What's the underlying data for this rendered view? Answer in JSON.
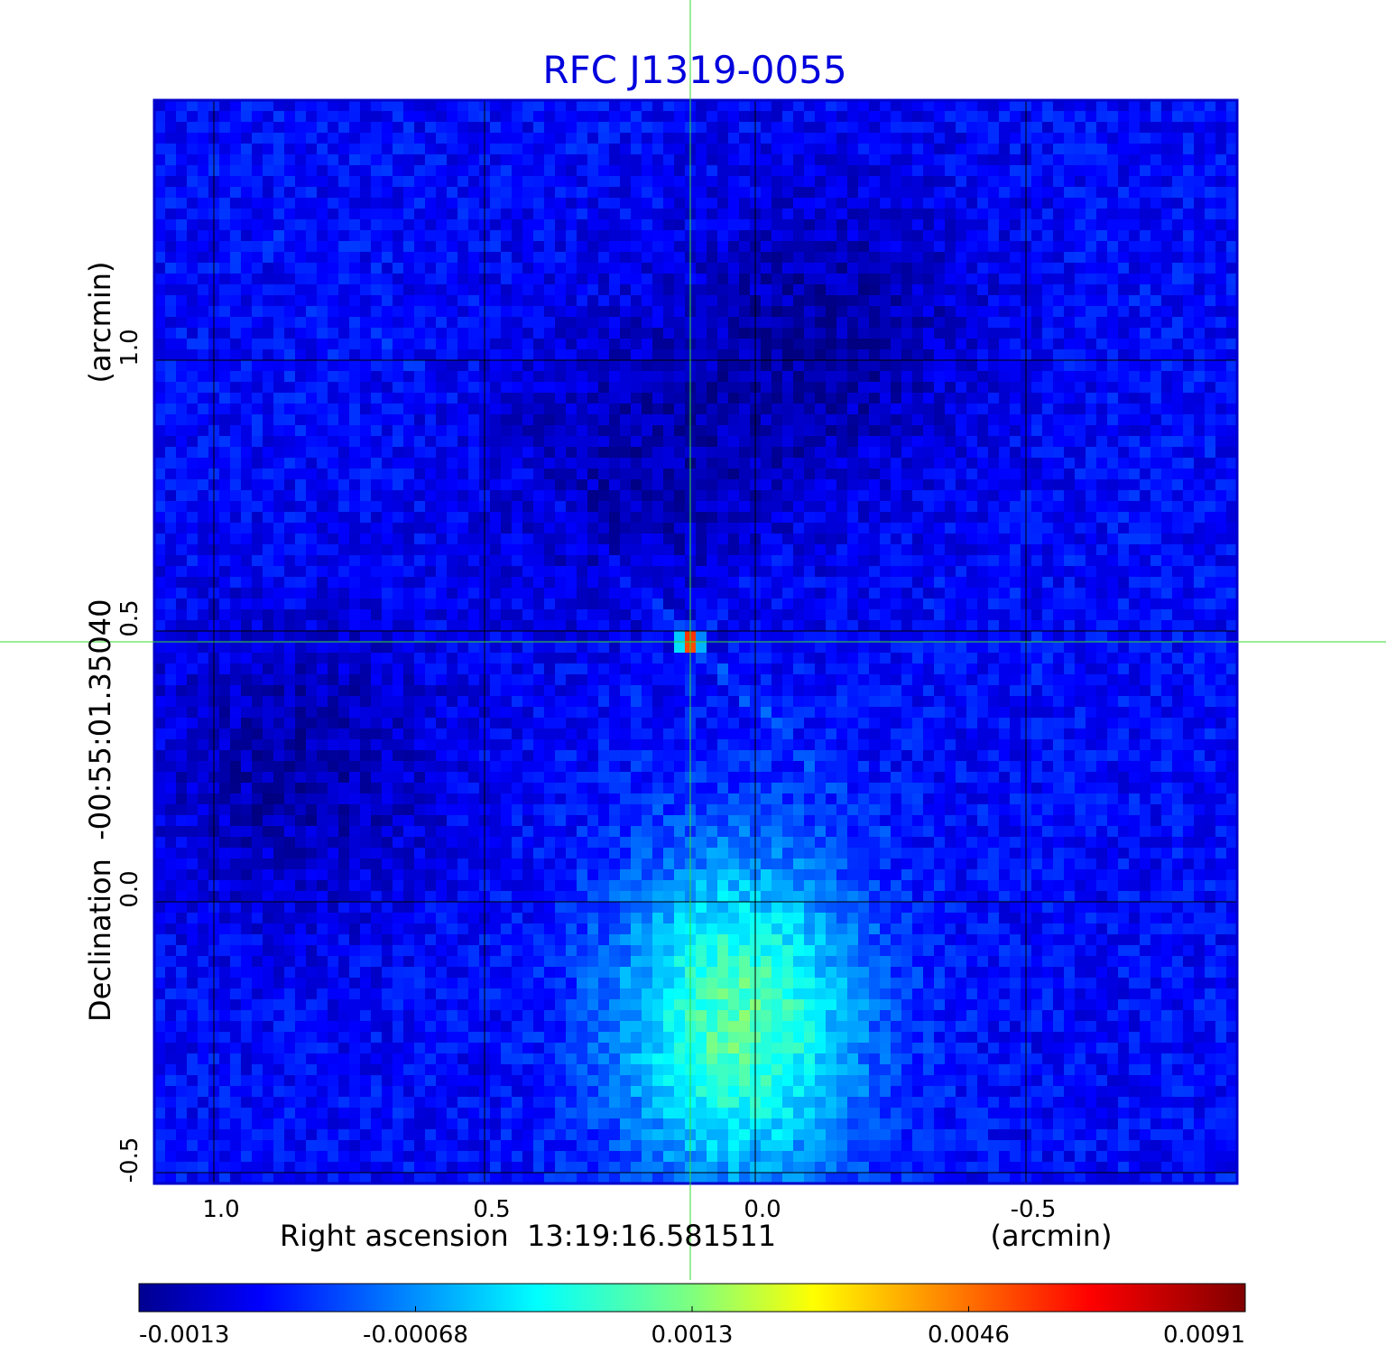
{
  "chart_data": {
    "type": "heatmap",
    "title": "RFC J1319-0055",
    "colors": {
      "title": "#0000dd",
      "frame": "#0000cc",
      "crosshair": "#33dd33"
    },
    "colormap": "jet",
    "xlabel": "Right ascension  13:19:16.581511",
    "xunit": "(arcmin)",
    "ylabel": "Declination  -00:55:01.35040",
    "yunit": "(arcmin)",
    "xlim": [
      1.11,
      -0.89
    ],
    "ylim": [
      -0.52,
      1.48
    ],
    "x_ticks": [
      1.0,
      0.5,
      0.0,
      -0.5
    ],
    "x_tick_labels": [
      "1.0",
      "0.5",
      "0.0",
      "-0.5"
    ],
    "y_ticks": [
      -0.5,
      0.0,
      0.5,
      1.0
    ],
    "y_tick_labels": [
      "-0.5",
      "0.0",
      "0.5",
      "1.0"
    ],
    "grid": true,
    "crosshair": {
      "x": 0.12,
      "y": 0.48
    },
    "colorbar": {
      "min": -0.0013,
      "max": 0.0091,
      "tick_labels": [
        "-0.0013",
        "-0.00068",
        "0.0013",
        "0.0046",
        "0.0091"
      ],
      "tick_fractions": [
        0.0,
        0.25,
        0.5,
        0.75,
        1.0
      ]
    },
    "features": [
      {
        "kind": "point_source",
        "x": 0.12,
        "y": 0.48,
        "peak": 0.0091
      },
      {
        "kind": "diffuse_excess",
        "x": 0.03,
        "y": -0.22,
        "level": 0.0035
      },
      {
        "kind": "negative_region",
        "x": -0.15,
        "y": 1.05,
        "level": -0.0009
      },
      {
        "kind": "negative_region",
        "x": 0.85,
        "y": 0.25,
        "level": -0.0009
      },
      {
        "kind": "negative_region",
        "x": 0.22,
        "y": 0.8,
        "level": -0.0008
      }
    ]
  }
}
